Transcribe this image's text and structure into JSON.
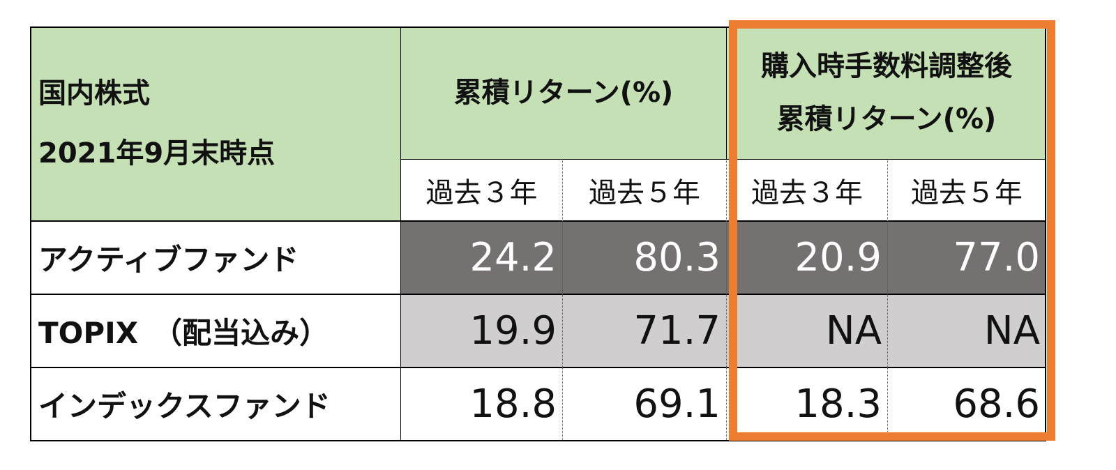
{
  "table": {
    "corner": [
      "国内株式",
      "2021年9月末時点"
    ],
    "groups": [
      [
        "累積リターン(%)"
      ],
      [
        "購入時手数料調整後",
        "累積リターン(%)"
      ]
    ],
    "subheaders": [
      "過去３年",
      "過去５年",
      "過去３年",
      "過去５年"
    ],
    "rows": [
      [
        "アクティブファンド",
        "24.2",
        "80.3",
        "20.9",
        "77.0"
      ],
      [
        "TOPIX　（配当込み）",
        "19.9",
        "71.7",
        "NA",
        "NA"
      ],
      [
        "インデックスファンド",
        "18.8",
        "69.1",
        "18.3",
        "68.6"
      ]
    ]
  }
}
